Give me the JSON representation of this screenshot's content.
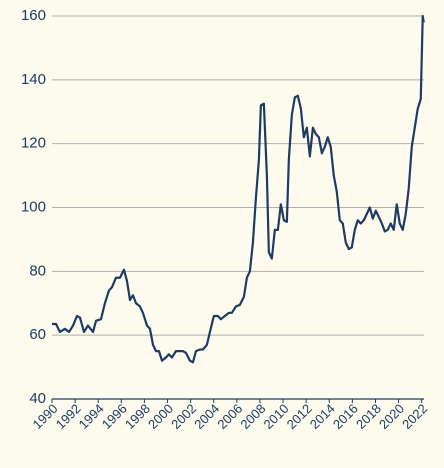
{
  "chart_data": {
    "type": "line",
    "x": [
      1990.0,
      1990.35,
      1990.69,
      1991.12,
      1991.47,
      1991.82,
      1992.16,
      1992.42,
      1992.77,
      1993.11,
      1993.55,
      1993.81,
      1994.24,
      1994.58,
      1994.93,
      1995.19,
      1995.54,
      1995.88,
      1996.23,
      1996.49,
      1996.75,
      1997.01,
      1997.27,
      1997.61,
      1997.87,
      1998.22,
      1998.48,
      1998.74,
      1999.0,
      1999.26,
      1999.52,
      1999.86,
      2000.12,
      2000.38,
      2000.73,
      2001.07,
      2001.33,
      2001.59,
      2001.94,
      2002.2,
      2002.46,
      2002.8,
      2003.06,
      2003.41,
      2003.67,
      2004.01,
      2004.36,
      2004.62,
      2004.96,
      2005.31,
      2005.57,
      2005.92,
      2006.26,
      2006.61,
      2006.87,
      2007.13,
      2007.39,
      2007.65,
      2007.91,
      2008.08,
      2008.34,
      2008.6,
      2008.77,
      2009.03,
      2009.29,
      2009.55,
      2009.81,
      2010.07,
      2010.33,
      2010.5,
      2010.76,
      2011.02,
      2011.28,
      2011.54,
      2011.8,
      2012.06,
      2012.32,
      2012.58,
      2012.84,
      2013.1,
      2013.36,
      2013.61,
      2013.87,
      2014.13,
      2014.39,
      2014.65,
      2014.91,
      2015.17,
      2015.43,
      2015.69,
      2015.95,
      2016.21,
      2016.47,
      2016.73,
      2016.99,
      2017.25,
      2017.51,
      2017.77,
      2018.03,
      2018.29,
      2018.55,
      2018.81,
      2019.06,
      2019.32,
      2019.58,
      2019.84,
      2020.1,
      2020.36,
      2020.62,
      2020.88,
      2021.14,
      2021.4,
      2021.66,
      2021.92,
      2022.09,
      2022.18
    ],
    "series": [
      {
        "color": "#1f3b63",
        "values": [
          63.5,
          63.5,
          61,
          62,
          61,
          63,
          66,
          65.5,
          61,
          63,
          61,
          64.5,
          65,
          70,
          74,
          75,
          78,
          78,
          80.5,
          77,
          71,
          72.5,
          70,
          69,
          67,
          63,
          62,
          57,
          55,
          55,
          52,
          53,
          54,
          53,
          55,
          55,
          55,
          54.5,
          52,
          51.5,
          55,
          55.5,
          55.5,
          57,
          61,
          66,
          66,
          65,
          66,
          67,
          67,
          69,
          69.5,
          72,
          78,
          80,
          89,
          103,
          115,
          132,
          132.5,
          110,
          86,
          84,
          93,
          93,
          101,
          96,
          95.5,
          115,
          129,
          134.5,
          135,
          131,
          122,
          125,
          116,
          125,
          123,
          122,
          117,
          119,
          122,
          119,
          110,
          105,
          96,
          95,
          89,
          87,
          87.5,
          93,
          96,
          95,
          96,
          98,
          100,
          96.5,
          99,
          97,
          95,
          92.5,
          93,
          95,
          93,
          101,
          95,
          93,
          98,
          106,
          119,
          125,
          131,
          134,
          160,
          158
        ]
      }
    ],
    "xlim": [
      1990,
      2022.2
    ],
    "xticks": [
      1990,
      1992,
      1994,
      1996,
      1998,
      2000,
      2002,
      2004,
      2006,
      2008,
      2010,
      2012,
      2014,
      2016,
      2018,
      2020,
      2022
    ],
    "ylim": [
      40,
      160
    ],
    "yticks": [
      40,
      60,
      80,
      100,
      120,
      140,
      160
    ],
    "grid": true
  }
}
